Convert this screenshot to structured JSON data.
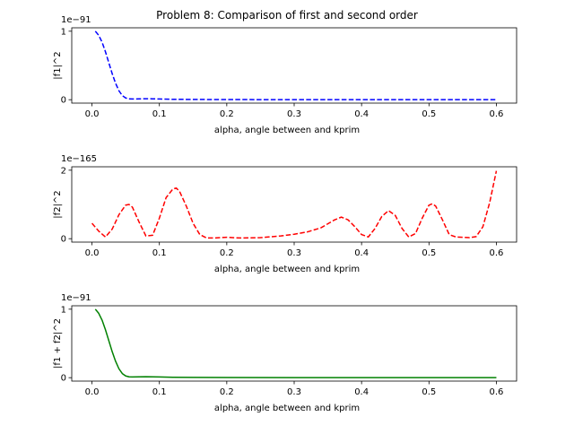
{
  "figure": {
    "title": "Problem 8: Comparison of first and second order"
  },
  "chart_data": [
    {
      "type": "line",
      "xlabel": "alpha, angle between and kprim",
      "ylabel": "|f1|^2",
      "offset_text": "1e−91",
      "xlim": [
        -0.03,
        0.63
      ],
      "ylim": [
        -0.05,
        1.05
      ],
      "xticks": [
        "0.0",
        "0.1",
        "0.2",
        "0.3",
        "0.4",
        "0.5",
        "0.6"
      ],
      "xtick_values": [
        0,
        0.1,
        0.2,
        0.3,
        0.4,
        0.5,
        0.6
      ],
      "yticks": [
        "0",
        "1"
      ],
      "ytick_values": [
        0,
        1
      ],
      "color": "#0000ff",
      "dashed": true,
      "series": [
        {
          "x": [
            0.005,
            0.01,
            0.015,
            0.02,
            0.025,
            0.03,
            0.035,
            0.04,
            0.045,
            0.05,
            0.055,
            0.06,
            0.07,
            0.08,
            0.09,
            0.1,
            0.12,
            0.15,
            0.2,
            0.3,
            0.4,
            0.5,
            0.6
          ],
          "y": [
            1.0,
            0.94,
            0.84,
            0.7,
            0.54,
            0.38,
            0.24,
            0.13,
            0.06,
            0.025,
            0.012,
            0.01,
            0.012,
            0.014,
            0.013,
            0.01,
            0.006,
            0.004,
            0.002,
            0.001,
            0.001,
            0.001,
            0.001
          ]
        }
      ]
    },
    {
      "type": "line",
      "xlabel": "alpha, angle between and kprim",
      "ylabel": "|f2|^2",
      "offset_text": "1e−165",
      "xlim": [
        -0.03,
        0.63
      ],
      "ylim": [
        -0.1,
        2.1
      ],
      "xticks": [
        "0.0",
        "0.1",
        "0.2",
        "0.3",
        "0.4",
        "0.5",
        "0.6"
      ],
      "xtick_values": [
        0,
        0.1,
        0.2,
        0.3,
        0.4,
        0.5,
        0.6
      ],
      "yticks": [
        "0",
        "2"
      ],
      "ytick_values": [
        0,
        2
      ],
      "color": "#ff0000",
      "dashed": true,
      "series": [
        {
          "x": [
            0.0,
            0.01,
            0.02,
            0.03,
            0.04,
            0.05,
            0.055,
            0.06,
            0.07,
            0.08,
            0.09,
            0.1,
            0.11,
            0.12,
            0.125,
            0.13,
            0.14,
            0.15,
            0.16,
            0.17,
            0.18,
            0.2,
            0.22,
            0.25,
            0.28,
            0.3,
            0.32,
            0.34,
            0.36,
            0.37,
            0.38,
            0.39,
            0.4,
            0.41,
            0.42,
            0.43,
            0.44,
            0.45,
            0.46,
            0.47,
            0.48,
            0.49,
            0.5,
            0.505,
            0.51,
            0.52,
            0.53,
            0.54,
            0.55,
            0.56,
            0.57,
            0.58,
            0.59,
            0.6
          ],
          "y": [
            0.45,
            0.22,
            0.05,
            0.28,
            0.7,
            0.98,
            1.0,
            0.92,
            0.48,
            0.08,
            0.1,
            0.6,
            1.2,
            1.45,
            1.48,
            1.38,
            0.95,
            0.45,
            0.12,
            0.02,
            0.02,
            0.04,
            0.02,
            0.03,
            0.08,
            0.13,
            0.2,
            0.32,
            0.55,
            0.63,
            0.55,
            0.35,
            0.12,
            0.05,
            0.3,
            0.65,
            0.82,
            0.68,
            0.3,
            0.05,
            0.15,
            0.6,
            0.98,
            1.02,
            0.95,
            0.55,
            0.12,
            0.05,
            0.04,
            0.03,
            0.06,
            0.35,
            1.05,
            1.98
          ]
        }
      ]
    },
    {
      "type": "line",
      "xlabel": "alpha, angle between and kprim",
      "ylabel": "|f1 + f2|^2",
      "offset_text": "1e−91",
      "xlim": [
        -0.03,
        0.63
      ],
      "ylim": [
        -0.05,
        1.05
      ],
      "xticks": [
        "0.0",
        "0.1",
        "0.2",
        "0.3",
        "0.4",
        "0.5",
        "0.6"
      ],
      "xtick_values": [
        0,
        0.1,
        0.2,
        0.3,
        0.4,
        0.5,
        0.6
      ],
      "yticks": [
        "0",
        "1"
      ],
      "ytick_values": [
        0,
        1
      ],
      "color": "#008000",
      "dashed": false,
      "series": [
        {
          "x": [
            0.005,
            0.01,
            0.015,
            0.02,
            0.025,
            0.03,
            0.035,
            0.04,
            0.045,
            0.05,
            0.055,
            0.06,
            0.07,
            0.08,
            0.09,
            0.1,
            0.12,
            0.15,
            0.2,
            0.3,
            0.4,
            0.5,
            0.6
          ],
          "y": [
            1.0,
            0.94,
            0.84,
            0.7,
            0.54,
            0.38,
            0.24,
            0.13,
            0.06,
            0.025,
            0.012,
            0.01,
            0.012,
            0.014,
            0.013,
            0.01,
            0.006,
            0.004,
            0.002,
            0.001,
            0.001,
            0.001,
            0.001
          ]
        }
      ]
    }
  ]
}
